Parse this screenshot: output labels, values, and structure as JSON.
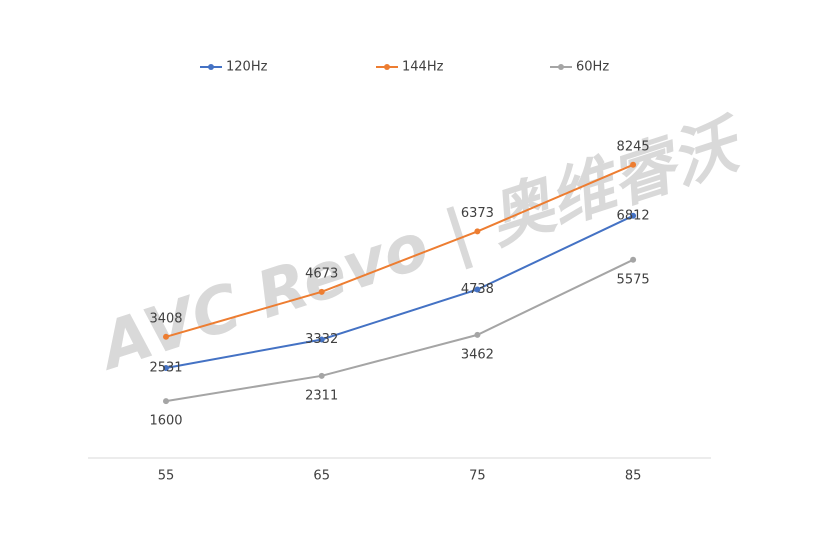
{
  "chart_data": {
    "type": "line",
    "watermark": "AVC Revo | 奥维睿沃",
    "categories": [
      "55",
      "65",
      "75",
      "85"
    ],
    "series": [
      {
        "name": "120Hz",
        "color": "#4472c4",
        "values": [
          2531,
          3332,
          4738,
          6812
        ]
      },
      {
        "name": "144Hz",
        "color": "#ed7d31",
        "values": [
          3408,
          4673,
          6373,
          8245
        ]
      },
      {
        "name": "60Hz",
        "color": "#a5a5a5",
        "values": [
          1600,
          2311,
          3462,
          5575
        ]
      }
    ],
    "legend": "top"
  }
}
